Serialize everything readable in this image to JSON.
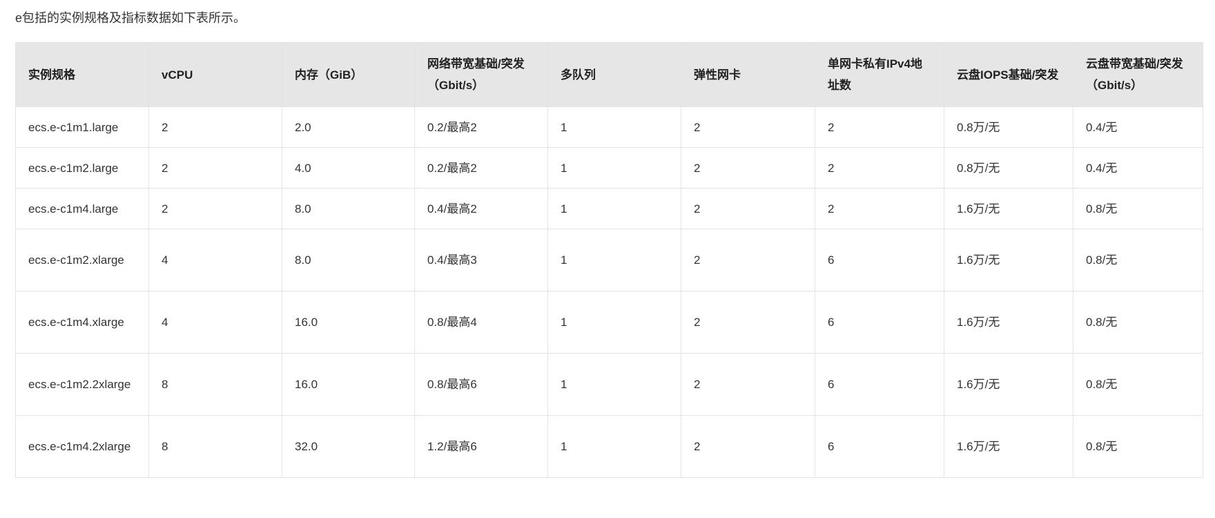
{
  "intro": "e包括的实例规格及指标数据如下表所示。",
  "table": {
    "headers": [
      "实例规格",
      "vCPU",
      "内存（GiB）",
      "网络带宽基础/突发（Gbit/s）",
      "多队列",
      "弹性网卡",
      "单网卡私有IPv4地址数",
      "云盘IOPS基础/突发",
      "云盘带宽基础/突发（Gbit/s）"
    ],
    "rows": [
      [
        "ecs.e-c1m1.large",
        "2",
        "2.0",
        "0.2/最高2",
        "1",
        "2",
        "2",
        "0.8万/无",
        "0.4/无"
      ],
      [
        "ecs.e-c1m2.large",
        "2",
        "4.0",
        "0.2/最高2",
        "1",
        "2",
        "2",
        "0.8万/无",
        "0.4/无"
      ],
      [
        "ecs.e-c1m4.large",
        "2",
        "8.0",
        "0.4/最高2",
        "1",
        "2",
        "2",
        "1.6万/无",
        "0.8/无"
      ],
      [
        "ecs.e-c1m2.xlarge",
        "4",
        "8.0",
        "0.4/最高3",
        "1",
        "2",
        "6",
        "1.6万/无",
        "0.8/无"
      ],
      [
        "ecs.e-c1m4.xlarge",
        "4",
        "16.0",
        "0.8/最高4",
        "1",
        "2",
        "6",
        "1.6万/无",
        "0.8/无"
      ],
      [
        "ecs.e-c1m2.2xlarge",
        "8",
        "16.0",
        "0.8/最高6",
        "1",
        "2",
        "6",
        "1.6万/无",
        "0.8/无"
      ],
      [
        "ecs.e-c1m4.2xlarge",
        "8",
        "32.0",
        "1.2/最高6",
        "1",
        "2",
        "6",
        "1.6万/无",
        "0.8/无"
      ]
    ]
  }
}
